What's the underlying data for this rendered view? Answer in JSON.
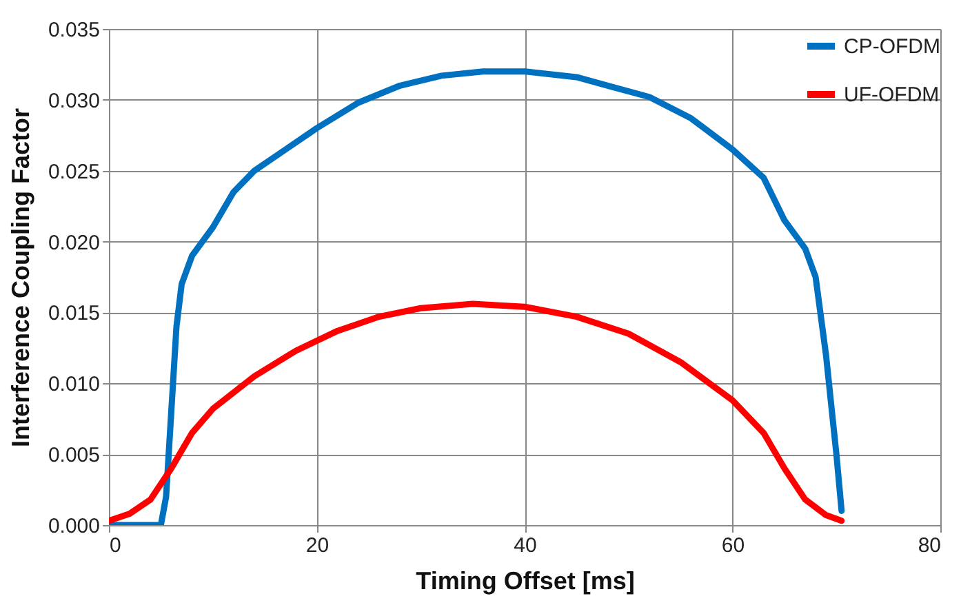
{
  "chart_data": {
    "type": "line",
    "xlabel": "Timing Offset [ms]",
    "ylabel": "Interference Coupling Factor",
    "xlim": [
      0,
      80
    ],
    "xticks": [
      0,
      20,
      40,
      60,
      80
    ],
    "ylim": [
      0,
      0.035
    ],
    "yticks": [
      {
        "value": 0,
        "label": "0.000"
      },
      {
        "value": 0.005,
        "label": "0.005"
      },
      {
        "value": 0.01,
        "label": "0.010"
      },
      {
        "value": 0.015,
        "label": "0.015"
      },
      {
        "value": 0.02,
        "label": "0.020"
      },
      {
        "value": 0.025,
        "label": "0.025"
      },
      {
        "value": 0.03,
        "label": "0.030"
      },
      {
        "value": 0.035,
        "label": "0.035"
      }
    ],
    "grid": true,
    "legend": "top right",
    "marker": "none",
    "line_style": "solid",
    "series": [
      {
        "name": "CP-OFDM",
        "color": "#0070c0",
        "x": [
          0,
          5,
          5.5,
          6,
          6.5,
          7,
          8,
          10,
          12,
          14,
          17,
          20,
          24,
          28,
          32,
          36,
          40,
          45,
          48,
          52,
          56,
          60,
          63,
          65,
          67,
          68,
          69,
          70,
          70.5
        ],
        "values": [
          0,
          0,
          0.002,
          0.008,
          0.014,
          0.017,
          0.019,
          0.021,
          0.0235,
          0.025,
          0.0265,
          0.028,
          0.0298,
          0.031,
          0.0317,
          0.032,
          0.032,
          0.0316,
          0.031,
          0.0302,
          0.0287,
          0.0265,
          0.0245,
          0.0215,
          0.0195,
          0.0175,
          0.012,
          0.005,
          0.001
        ]
      },
      {
        "name": "UF-OFDM",
        "color": "#ff0000",
        "x": [
          0,
          2,
          4,
          6,
          8,
          10,
          14,
          18,
          22,
          26,
          30,
          35,
          40,
          45,
          50,
          55,
          60,
          63,
          65,
          67,
          69,
          70.5
        ],
        "values": [
          0.0003,
          0.0008,
          0.0018,
          0.004,
          0.0065,
          0.0082,
          0.0105,
          0.0123,
          0.0137,
          0.0147,
          0.0153,
          0.0156,
          0.0154,
          0.0147,
          0.0135,
          0.0115,
          0.0088,
          0.0065,
          0.004,
          0.0018,
          0.0007,
          0.0003
        ]
      }
    ]
  }
}
